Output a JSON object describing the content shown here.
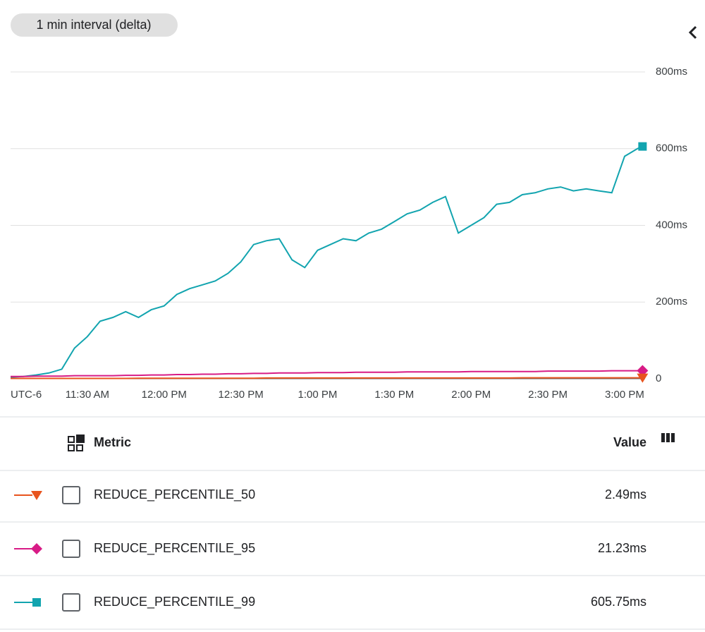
{
  "chart_data": {
    "type": "line",
    "title": "1 min interval (delta)",
    "timezone": "UTC-6",
    "x": [
      "11:00 AM",
      "11:05 AM",
      "11:10 AM",
      "11:15 AM",
      "11:20 AM",
      "11:25 AM",
      "11:30 AM",
      "11:35 AM",
      "11:40 AM",
      "11:45 AM",
      "11:50 AM",
      "11:55 AM",
      "12:00 PM",
      "12:05 PM",
      "12:10 PM",
      "12:15 PM",
      "12:20 PM",
      "12:25 PM",
      "12:30 PM",
      "12:35 PM",
      "12:40 PM",
      "12:45 PM",
      "12:50 PM",
      "12:55 PM",
      "1:00 PM",
      "1:05 PM",
      "1:10 PM",
      "1:15 PM",
      "1:20 PM",
      "1:25 PM",
      "1:30 PM",
      "1:35 PM",
      "1:40 PM",
      "1:45 PM",
      "1:50 PM",
      "1:55 PM",
      "2:00 PM",
      "2:05 PM",
      "2:10 PM",
      "2:15 PM",
      "2:20 PM",
      "2:25 PM",
      "2:30 PM",
      "2:35 PM",
      "2:40 PM",
      "2:45 PM",
      "2:50 PM",
      "2:55 PM",
      "3:00 PM",
      "3:05 PM",
      "3:07 PM"
    ],
    "xlim": [
      "11:00 AM",
      "3:08 PM"
    ],
    "xticks": [
      "11:30 AM",
      "12:00 PM",
      "12:30 PM",
      "1:00 PM",
      "1:30 PM",
      "2:00 PM",
      "2:30 PM",
      "3:00 PM"
    ],
    "ylim": [
      0,
      800
    ],
    "yticks": [
      0,
      {
        "value": 200,
        "label": "200ms"
      },
      {
        "value": 400,
        "label": "400ms"
      },
      {
        "value": 600,
        "label": "600ms"
      },
      {
        "value": 800,
        "label": "800ms"
      }
    ],
    "grid": true,
    "table_header": {
      "metric": "Metric",
      "value": "Value"
    },
    "series": [
      {
        "name": "REDUCE_PERCENTILE_50",
        "color": "#e8541e",
        "marker": "triangle",
        "values": [
          1,
          1,
          1,
          1,
          1,
          1,
          1,
          1,
          1,
          1,
          1.5,
          1.5,
          1.5,
          1.5,
          1.5,
          1.5,
          1.5,
          1.5,
          1.5,
          1.5,
          2,
          2,
          2,
          2,
          2,
          2,
          2,
          2,
          2,
          2,
          2,
          2,
          2,
          2,
          2,
          2,
          2,
          2,
          2,
          2,
          2.5,
          2.5,
          2.5,
          2.5,
          2.5,
          2.5,
          2.5,
          2.5,
          2.5,
          2.5,
          2.49
        ],
        "value_label": "2.49ms"
      },
      {
        "name": "REDUCE_PERCENTILE_95",
        "color": "#d81b86",
        "marker": "diamond",
        "values": [
          6,
          6,
          7,
          7,
          7,
          8,
          8,
          8,
          8,
          9,
          9,
          10,
          10,
          11,
          11,
          12,
          12,
          13,
          13,
          14,
          14,
          15,
          15,
          15,
          16,
          16,
          16,
          17,
          17,
          17,
          17,
          18,
          18,
          18,
          18,
          18,
          19,
          19,
          19,
          19,
          19,
          19,
          20,
          20,
          20,
          20,
          20,
          21,
          21,
          21,
          21.23
        ],
        "value_label": "21.23ms"
      },
      {
        "name": "REDUCE_PERCENTILE_99",
        "color": "#12a4af",
        "marker": "square",
        "values": [
          4,
          6,
          10,
          15,
          25,
          80,
          110,
          150,
          160,
          175,
          160,
          180,
          190,
          220,
          235,
          245,
          255,
          275,
          305,
          350,
          360,
          365,
          310,
          290,
          335,
          350,
          365,
          360,
          380,
          390,
          410,
          430,
          440,
          460,
          475,
          380,
          400,
          420,
          455,
          460,
          480,
          485,
          495,
          500,
          490,
          495,
          490,
          485,
          580,
          600,
          605.75
        ],
        "value_label": "605.75ms"
      }
    ]
  }
}
